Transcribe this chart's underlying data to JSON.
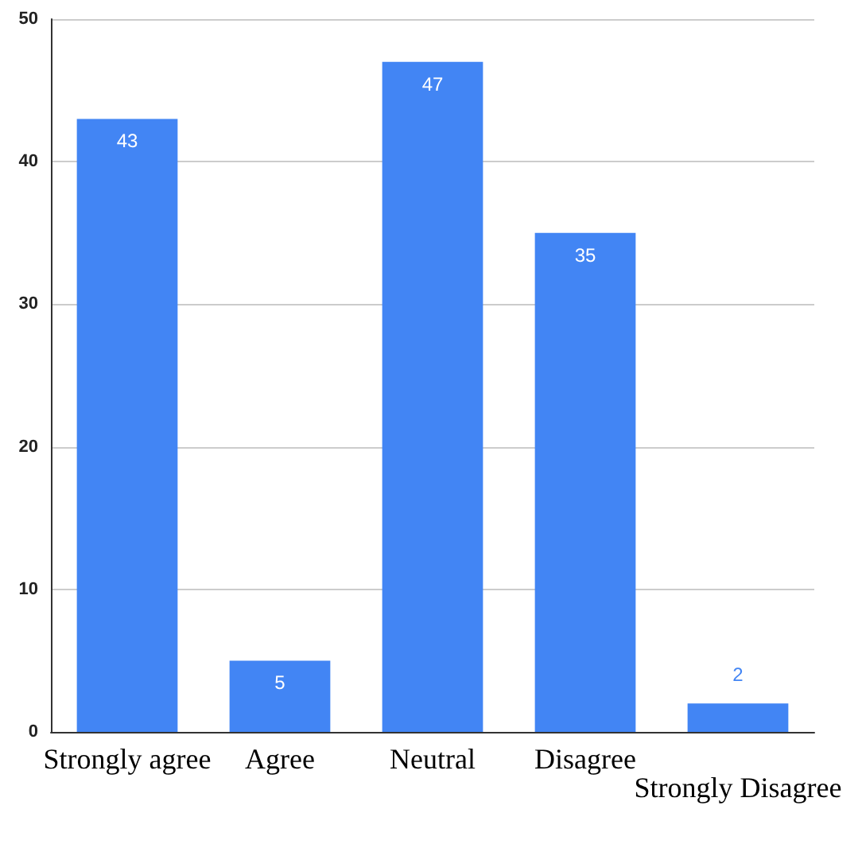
{
  "chart_data": {
    "type": "bar",
    "categories": [
      "Strongly agree",
      "Agree",
      "Neutral",
      "Disagree",
      "Strongly Disagree"
    ],
    "values": [
      43,
      5,
      47,
      35,
      2
    ],
    "color": "#4285f4",
    "ylim": [
      0,
      50
    ],
    "yticks": [
      0,
      10,
      20,
      30,
      40,
      50
    ],
    "grid": "y",
    "data_labels": true
  }
}
